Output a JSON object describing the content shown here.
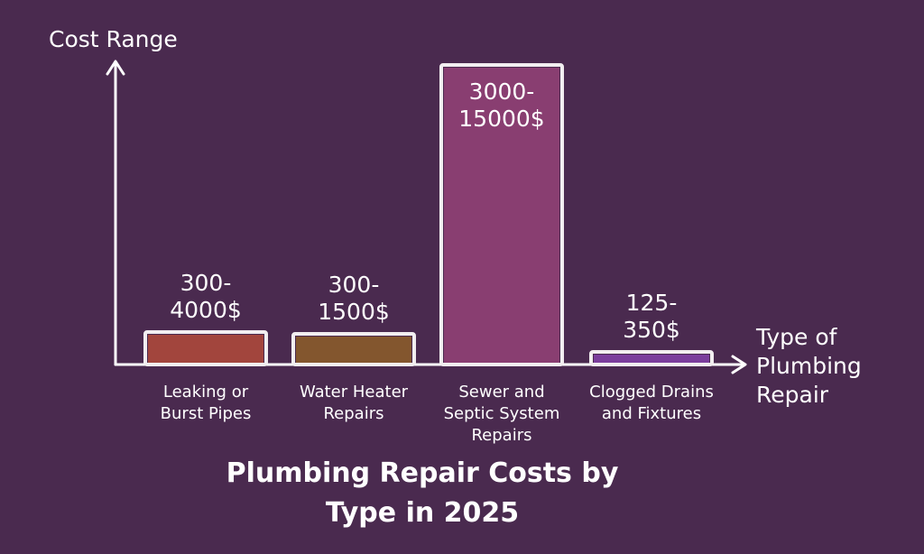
{
  "colors": {
    "background": "#4a2a4f",
    "axis": "#ffffff",
    "bar_outline": "#f2eef0"
  },
  "chart_data": {
    "type": "bar",
    "title": "Plumbing Repair Costs by Type in 2025",
    "xlabel": "Type of Plumbing Repair",
    "ylabel": "Cost Range",
    "grid": false,
    "ylim": [
      0,
      15000
    ],
    "categories": [
      {
        "label": "Leaking or Burst Pipes",
        "value_label": "300-4000$",
        "min": 300,
        "max": 4000,
        "color": "#a6473c"
      },
      {
        "label": "Water Heater Repairs",
        "value_label": "300-1500$",
        "min": 300,
        "max": 1500,
        "color": "#86592c"
      },
      {
        "label": "Sewer and Septic System Repairs",
        "value_label": "3000-15000$",
        "min": 3000,
        "max": 15000,
        "color": "#8c3f73"
      },
      {
        "label": "Clogged Drains and Fixtures",
        "value_label": "125-350$",
        "min": 125,
        "max": 350,
        "color": "#7d3fa0"
      }
    ]
  }
}
